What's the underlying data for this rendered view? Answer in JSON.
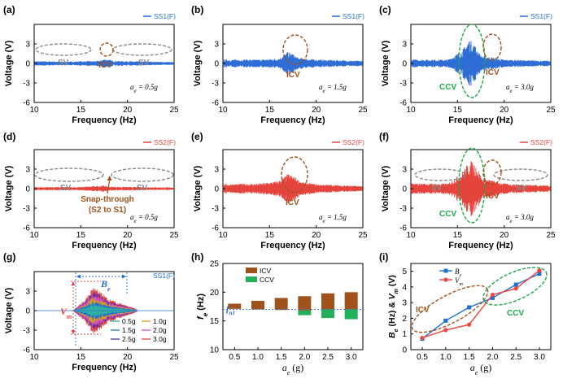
{
  "colors": {
    "ss1": "#1f6fd6",
    "ss2": "#f0443c",
    "icv": "#a0521c",
    "ccv": "#1aa94a",
    "sv": "#8a8a8a",
    "brown": "#a0521c",
    "green": "#22b05a",
    "vline": "#3f7fd8",
    "trace_b": "#2e6cd6",
    "trace_r": "#e5443d"
  },
  "panels": [
    {
      "label": "(a)",
      "legend": "SS1(F)",
      "ae_prefix": "a",
      "ae_sub": "e",
      "ae_value": " = 0.5g",
      "sv": "SV",
      "icv": "ICV",
      "xlabel": "Frequency (Hz)",
      "ylabel": "Voltage (V)"
    },
    {
      "label": "(b)",
      "legend": "SS1(F)",
      "ae_prefix": "a",
      "ae_sub": "e",
      "ae_value": " = 1.5g",
      "icv": "ICV",
      "xlabel": "Frequency (Hz)",
      "ylabel": "Voltage (V)"
    },
    {
      "label": "(c)",
      "legend": "SS1(F)",
      "ae_prefix": "a",
      "ae_sub": "e",
      "ae_value": " = 3.0g",
      "icv": "ICV",
      "ccv": "CCV",
      "xlabel": "Frequency (Hz)",
      "ylabel": "Voltage (V)"
    },
    {
      "label": "(d)",
      "legend": "SS2(F)",
      "ae_prefix": "a",
      "ae_sub": "e",
      "ae_value": " = 0.5g",
      "sv": "SV",
      "snap1": "Snap-through",
      "snap2": "(S2 to S1)",
      "xlabel": "Frequency (Hz)",
      "ylabel": "Voltage (V)"
    },
    {
      "label": "(e)",
      "legend": "SS2(F)",
      "ae_prefix": "a",
      "ae_sub": "e",
      "ae_value": " = 1.5g",
      "icv": "ICV",
      "xlabel": "Frequency (Hz)",
      "ylabel": "Voltage (V)"
    },
    {
      "label": "(f)",
      "legend": "SS2(F)",
      "ae_prefix": "a",
      "ae_sub": "e",
      "ae_value": " = 3.0g",
      "sv": "SV",
      "icv": "ICV",
      "ccv": "CCV",
      "xlabel": "Frequency (Hz)",
      "ylabel": "Voltage (V)"
    },
    {
      "label": "(g)",
      "legend": "SS1(F)",
      "be": "B",
      "be_sub": "e",
      "vm": "V",
      "vm_sub": "m",
      "xlabel": "Frequency (Hz)",
      "ylabel": "Voltage (V)"
    },
    {
      "label": "(h)",
      "xlabel": "a",
      "xlabel_sub": "e",
      "xlabel_unit": " (g)",
      "ylabel": "f",
      "ylabel_sub": "e",
      "ylabel_unit": " (Hz)",
      "fn1": "f",
      "fn1_sub": "n1",
      "legend_icv": "ICV",
      "legend_ccv": "CCV"
    },
    {
      "label": "(i)",
      "xlabel": "a",
      "xlabel_sub": "e",
      "xlabel_unit": " (g)",
      "ylabel": "B",
      "ylabel_sub": "e",
      "ylabel_mid": " (Hz) & ",
      "ylabel2": "V",
      "ylabel2_sub": "m",
      "ylabel_unit": " (V)",
      "icv": "ICV",
      "ccv": "CCV",
      "legend_be": "B",
      "legend_be_sub": "e",
      "legend_vm": "V",
      "legend_vm_sub": "m"
    }
  ],
  "g_legend": [
    "0.5g",
    "1.0g",
    "1.5g",
    "2.0g",
    "2.5g",
    "3.0g"
  ],
  "chart_data": [
    {
      "type": "line",
      "panel": "a",
      "xlim": [
        10,
        25
      ],
      "ylim": [
        -6,
        6
      ],
      "xticks": [
        10,
        15,
        20,
        25
      ],
      "yticks": [
        -6,
        -3,
        0,
        3
      ],
      "envelope": [
        [
          10,
          0.35
        ],
        [
          14,
          0.3
        ],
        [
          17,
          0.4
        ],
        [
          17.5,
          0.7
        ],
        [
          18,
          0.6
        ],
        [
          18.5,
          0.4
        ],
        [
          22,
          0.3
        ],
        [
          25,
          0.2
        ]
      ]
    },
    {
      "type": "line",
      "panel": "b",
      "xlim": [
        10,
        25
      ],
      "ylim": [
        -6,
        6
      ],
      "xticks": [
        10,
        15,
        20,
        25
      ],
      "yticks": [
        -6,
        -3,
        0,
        3
      ],
      "envelope": [
        [
          10,
          0.6
        ],
        [
          14,
          0.6
        ],
        [
          16,
          0.8
        ],
        [
          17,
          1.8
        ],
        [
          17.5,
          1.5
        ],
        [
          18,
          0.9
        ],
        [
          20,
          0.6
        ],
        [
          25,
          0.4
        ]
      ]
    },
    {
      "type": "line",
      "panel": "c",
      "xlim": [
        10,
        25
      ],
      "ylim": [
        -6,
        6
      ],
      "xticks": [
        10,
        15,
        20,
        25
      ],
      "yticks": [
        -6,
        -3,
        0,
        3
      ],
      "envelope": [
        [
          10,
          0.6
        ],
        [
          14,
          0.6
        ],
        [
          15.5,
          2.0
        ],
        [
          16.2,
          3.8
        ],
        [
          16.8,
          3.0
        ],
        [
          17.5,
          1.2
        ],
        [
          18.5,
          1.0
        ],
        [
          20,
          0.6
        ],
        [
          25,
          0.4
        ]
      ]
    },
    {
      "type": "line",
      "panel": "d",
      "xlim": [
        10,
        25
      ],
      "ylim": [
        -6,
        6
      ],
      "xticks": [
        10,
        15,
        20,
        25
      ],
      "yticks": [
        -6,
        -3,
        0,
        3
      ],
      "envelope": [
        [
          10,
          0.25
        ],
        [
          15,
          0.25
        ],
        [
          17.5,
          0.5
        ],
        [
          18,
          0.3
        ],
        [
          25,
          0.2
        ]
      ]
    },
    {
      "type": "line",
      "panel": "e",
      "xlim": [
        10,
        25
      ],
      "ylim": [
        -6,
        6
      ],
      "xticks": [
        10,
        15,
        20,
        25
      ],
      "yticks": [
        -6,
        -3,
        0,
        3
      ],
      "envelope": [
        [
          10,
          0.7
        ],
        [
          14,
          0.8
        ],
        [
          16,
          1.2
        ],
        [
          17,
          2.3
        ],
        [
          17.5,
          2.0
        ],
        [
          18.5,
          1.0
        ],
        [
          20,
          0.7
        ],
        [
          25,
          0.4
        ]
      ]
    },
    {
      "type": "line",
      "panel": "f",
      "xlim": [
        10,
        25
      ],
      "ylim": [
        -6,
        6
      ],
      "xticks": [
        10,
        15,
        20,
        25
      ],
      "yticks": [
        -6,
        -3,
        0,
        3
      ],
      "envelope": [
        [
          10,
          0.8
        ],
        [
          14,
          0.8
        ],
        [
          15.5,
          2.5
        ],
        [
          16.3,
          4.4
        ],
        [
          17,
          3.8
        ],
        [
          17.6,
          1.6
        ],
        [
          18.5,
          1.4
        ],
        [
          20,
          0.8
        ],
        [
          25,
          0.5
        ]
      ]
    },
    {
      "type": "line",
      "panel": "g",
      "xlim": [
        10,
        25
      ],
      "ylim": [
        -6,
        6
      ],
      "xticks": [
        10,
        15,
        20,
        25
      ],
      "yticks": [
        -6,
        -3,
        0,
        3
      ],
      "envelope": [
        [
          14.3,
          0.2
        ],
        [
          15.5,
          1.8
        ],
        [
          16.3,
          3.8
        ],
        [
          17,
          3.0
        ],
        [
          18,
          1.8
        ],
        [
          19.5,
          1.0
        ],
        [
          20.5,
          0.5
        ],
        [
          21,
          0.2
        ]
      ]
    },
    {
      "type": "bar",
      "panel": "h",
      "categories": [
        "0.5",
        "1.0",
        "1.5",
        "2.0",
        "2.5",
        "3.0"
      ],
      "ylim": [
        10,
        25
      ],
      "yticks": [
        10,
        15,
        20,
        25
      ],
      "fn1": 17.0,
      "series": [
        {
          "name": "ICV",
          "ranges": [
            [
              17.1,
              18.0
            ],
            [
              17.0,
              18.5
            ],
            [
              16.9,
              19.0
            ],
            [
              16.8,
              19.3
            ],
            [
              17.0,
              19.8
            ],
            [
              17.0,
              20.0
            ]
          ]
        },
        {
          "name": "CCV",
          "ranges": [
            null,
            null,
            null,
            [
              16.0,
              16.8
            ],
            [
              15.5,
              17.0
            ],
            [
              15.3,
              17.0
            ]
          ]
        }
      ]
    },
    {
      "type": "line",
      "panel": "i",
      "x": [
        0.5,
        1.0,
        1.5,
        2.0,
        2.5,
        3.0
      ],
      "ylim": [
        0,
        5.5
      ],
      "yticks": [
        0,
        1,
        2,
        3,
        4,
        5
      ],
      "series": [
        {
          "name": "Be",
          "values": [
            0.7,
            1.85,
            2.7,
            3.3,
            4.15,
            4.85
          ]
        },
        {
          "name": "Vm",
          "values": [
            0.75,
            1.25,
            1.6,
            3.5,
            3.9,
            5.05
          ]
        }
      ]
    }
  ]
}
